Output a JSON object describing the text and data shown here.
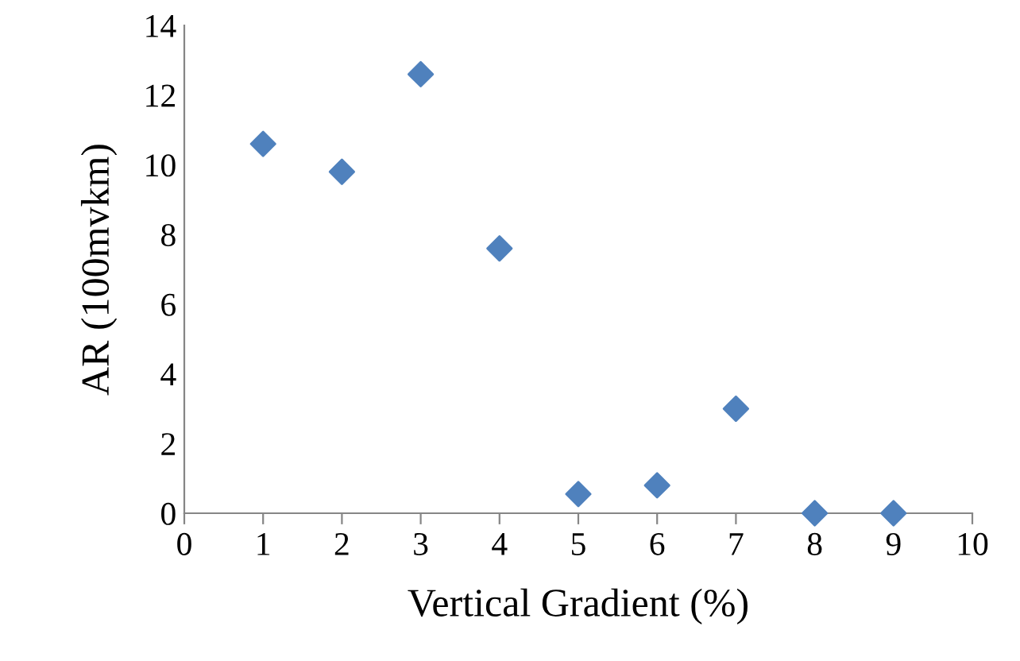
{
  "chart_data": {
    "type": "scatter",
    "xlabel": "Vertical Gradient (%)",
    "ylabel": "AR (100mvkm)",
    "x": [
      1,
      2,
      3,
      4,
      5,
      6,
      7,
      8,
      9
    ],
    "series": [
      {
        "color": "#4f81bd",
        "values": [
          10.6,
          9.8,
          12.6,
          7.6,
          0.55,
          0.8,
          3.0,
          0,
          0
        ]
      }
    ],
    "xlim": [
      0,
      10
    ],
    "ylim": [
      0,
      14
    ],
    "xticks": [
      0,
      1,
      2,
      3,
      4,
      5,
      6,
      7,
      8,
      9,
      10
    ],
    "yticks": [
      0,
      2,
      4,
      6,
      8,
      10,
      12,
      14
    ],
    "marker": "diamond",
    "grid": false,
    "legend": false
  }
}
